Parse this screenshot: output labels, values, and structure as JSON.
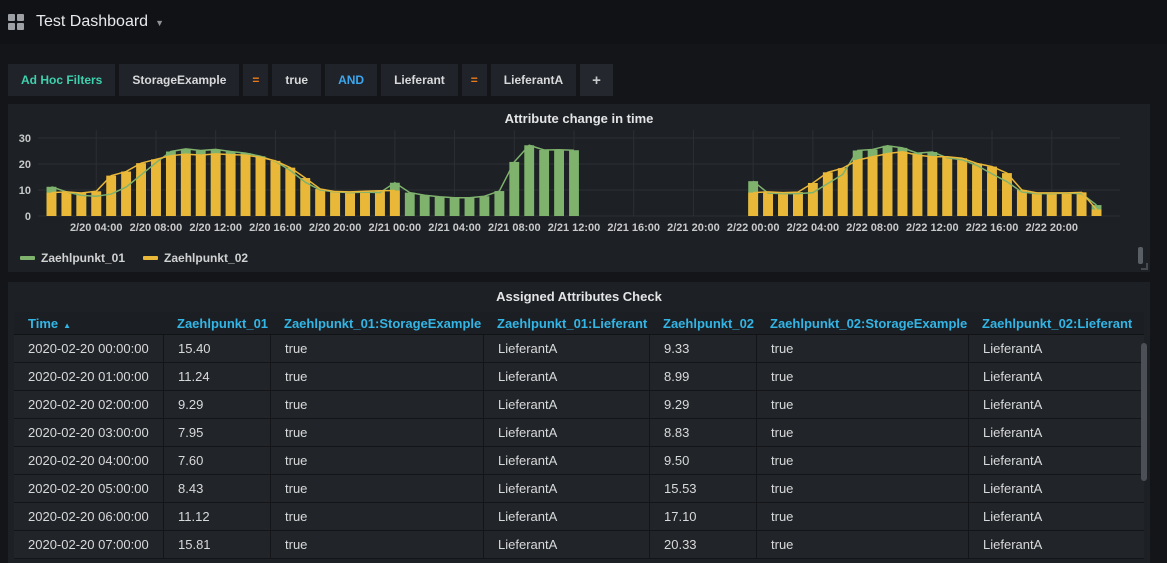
{
  "header": {
    "title": "Test Dashboard"
  },
  "filters": {
    "label": "Ad Hoc Filters",
    "add_label": "+",
    "segments": [
      {
        "text": "StorageExample",
        "type": "key"
      },
      {
        "text": "=",
        "type": "operator"
      },
      {
        "text": "true",
        "type": "value"
      },
      {
        "text": "AND",
        "type": "condition"
      },
      {
        "text": "Lieferant",
        "type": "key"
      },
      {
        "text": "=",
        "type": "operator"
      },
      {
        "text": "LieferantA",
        "type": "value"
      }
    ]
  },
  "chart_data": {
    "type": "bar",
    "title": "Attribute change in time",
    "x_start": "2020-02-20 01:00",
    "x_step_hours": 1,
    "ylim": [
      0,
      33
    ],
    "y_ticks": [
      0,
      10,
      20,
      30
    ],
    "grid": true,
    "legend_position": "bottom-left",
    "x_ticks": [
      {
        "index": 3,
        "label": "2/20 04:00"
      },
      {
        "index": 7,
        "label": "2/20 08:00"
      },
      {
        "index": 11,
        "label": "2/20 12:00"
      },
      {
        "index": 15,
        "label": "2/20 16:00"
      },
      {
        "index": 19,
        "label": "2/20 20:00"
      },
      {
        "index": 23,
        "label": "2/21 00:00"
      },
      {
        "index": 27,
        "label": "2/21 04:00"
      },
      {
        "index": 31,
        "label": "2/21 08:00"
      },
      {
        "index": 35,
        "label": "2/21 12:00"
      },
      {
        "index": 39,
        "label": "2/21 16:00"
      },
      {
        "index": 43,
        "label": "2/21 20:00"
      },
      {
        "index": 47,
        "label": "2/22 00:00"
      },
      {
        "index": 51,
        "label": "2/22 04:00"
      },
      {
        "index": 55,
        "label": "2/22 08:00"
      },
      {
        "index": 59,
        "label": "2/22 12:00"
      },
      {
        "index": 63,
        "label": "2/22 16:00"
      },
      {
        "index": 67,
        "label": "2/22 20:00"
      }
    ],
    "series": [
      {
        "name": "Zaehlpunkt_01",
        "color": "#7EB26D",
        "values": [
          11.24,
          9.29,
          7.95,
          7.6,
          8.43,
          11.12,
          15.81,
          20.5,
          24.8,
          25.8,
          25.2,
          25.6,
          24.8,
          24.2,
          23,
          21,
          17.5,
          13,
          10,
          9.3,
          9,
          9.2,
          9,
          12.8,
          9,
          8,
          7.4,
          7,
          7,
          7.6,
          9.6,
          20.8,
          27.2,
          25.4,
          25.5,
          25.3,
          null,
          null,
          null,
          null,
          null,
          null,
          null,
          null,
          null,
          null,
          null,
          13.4,
          8.8,
          8.6,
          8.6,
          9,
          12.5,
          16,
          25.2,
          25.6,
          27,
          26.2,
          24.2,
          24.6,
          22.4,
          21.6,
          19.4,
          16.2,
          13.2,
          9.2,
          8.6,
          8.6,
          8.8,
          8.6,
          4.2
        ]
      },
      {
        "name": "Zaehlpunkt_02",
        "color": "#EAB839",
        "values": [
          8.99,
          9.29,
          8.83,
          9.5,
          15.53,
          17.1,
          20.33,
          21.8,
          23.2,
          23.8,
          23.4,
          23.9,
          23.6,
          23.4,
          22.6,
          21.2,
          18.6,
          14.6,
          10.4,
          9.4,
          9.3,
          9.5,
          9.7,
          9.8,
          null,
          null,
          null,
          null,
          null,
          null,
          null,
          null,
          null,
          null,
          null,
          null,
          null,
          null,
          null,
          null,
          null,
          null,
          null,
          null,
          null,
          null,
          null,
          9,
          9.3,
          9,
          9.2,
          12.7,
          16.8,
          18.4,
          21.5,
          22.8,
          24,
          24.7,
          23.4,
          22.8,
          22.8,
          22.2,
          20.2,
          19,
          16.5,
          10,
          8.9,
          8.9,
          8.9,
          9.1,
          2.5
        ]
      }
    ]
  },
  "table_panel": {
    "title": "Assigned Attributes Check",
    "sort": {
      "column": "Time",
      "direction": "asc",
      "indicator": "▲"
    },
    "columns": [
      "Time",
      "Zaehlpunkt_01",
      "Zaehlpunkt_01:StorageExample",
      "Zaehlpunkt_01:Lieferant",
      "Zaehlpunkt_02",
      "Zaehlpunkt_02:StorageExample",
      "Zaehlpunkt_02:Lieferant"
    ],
    "rows": [
      [
        "2020-02-20 00:00:00",
        "15.40",
        "true",
        "LieferantA",
        "9.33",
        "true",
        "LieferantA"
      ],
      [
        "2020-02-20 01:00:00",
        "11.24",
        "true",
        "LieferantA",
        "8.99",
        "true",
        "LieferantA"
      ],
      [
        "2020-02-20 02:00:00",
        "9.29",
        "true",
        "LieferantA",
        "9.29",
        "true",
        "LieferantA"
      ],
      [
        "2020-02-20 03:00:00",
        "7.95",
        "true",
        "LieferantA",
        "8.83",
        "true",
        "LieferantA"
      ],
      [
        "2020-02-20 04:00:00",
        "7.60",
        "true",
        "LieferantA",
        "9.50",
        "true",
        "LieferantA"
      ],
      [
        "2020-02-20 05:00:00",
        "8.43",
        "true",
        "LieferantA",
        "15.53",
        "true",
        "LieferantA"
      ],
      [
        "2020-02-20 06:00:00",
        "11.12",
        "true",
        "LieferantA",
        "17.10",
        "true",
        "LieferantA"
      ],
      [
        "2020-02-20 07:00:00",
        "15.81",
        "true",
        "LieferantA",
        "20.33",
        "true",
        "LieferantA"
      ]
    ]
  },
  "colors": {
    "accent_blue": "#33b5e5",
    "accent_orange": "#eb7b18",
    "accent_teal": "#3fd0ad",
    "series_green": "#7EB26D",
    "series_yellow": "#EAB839"
  }
}
